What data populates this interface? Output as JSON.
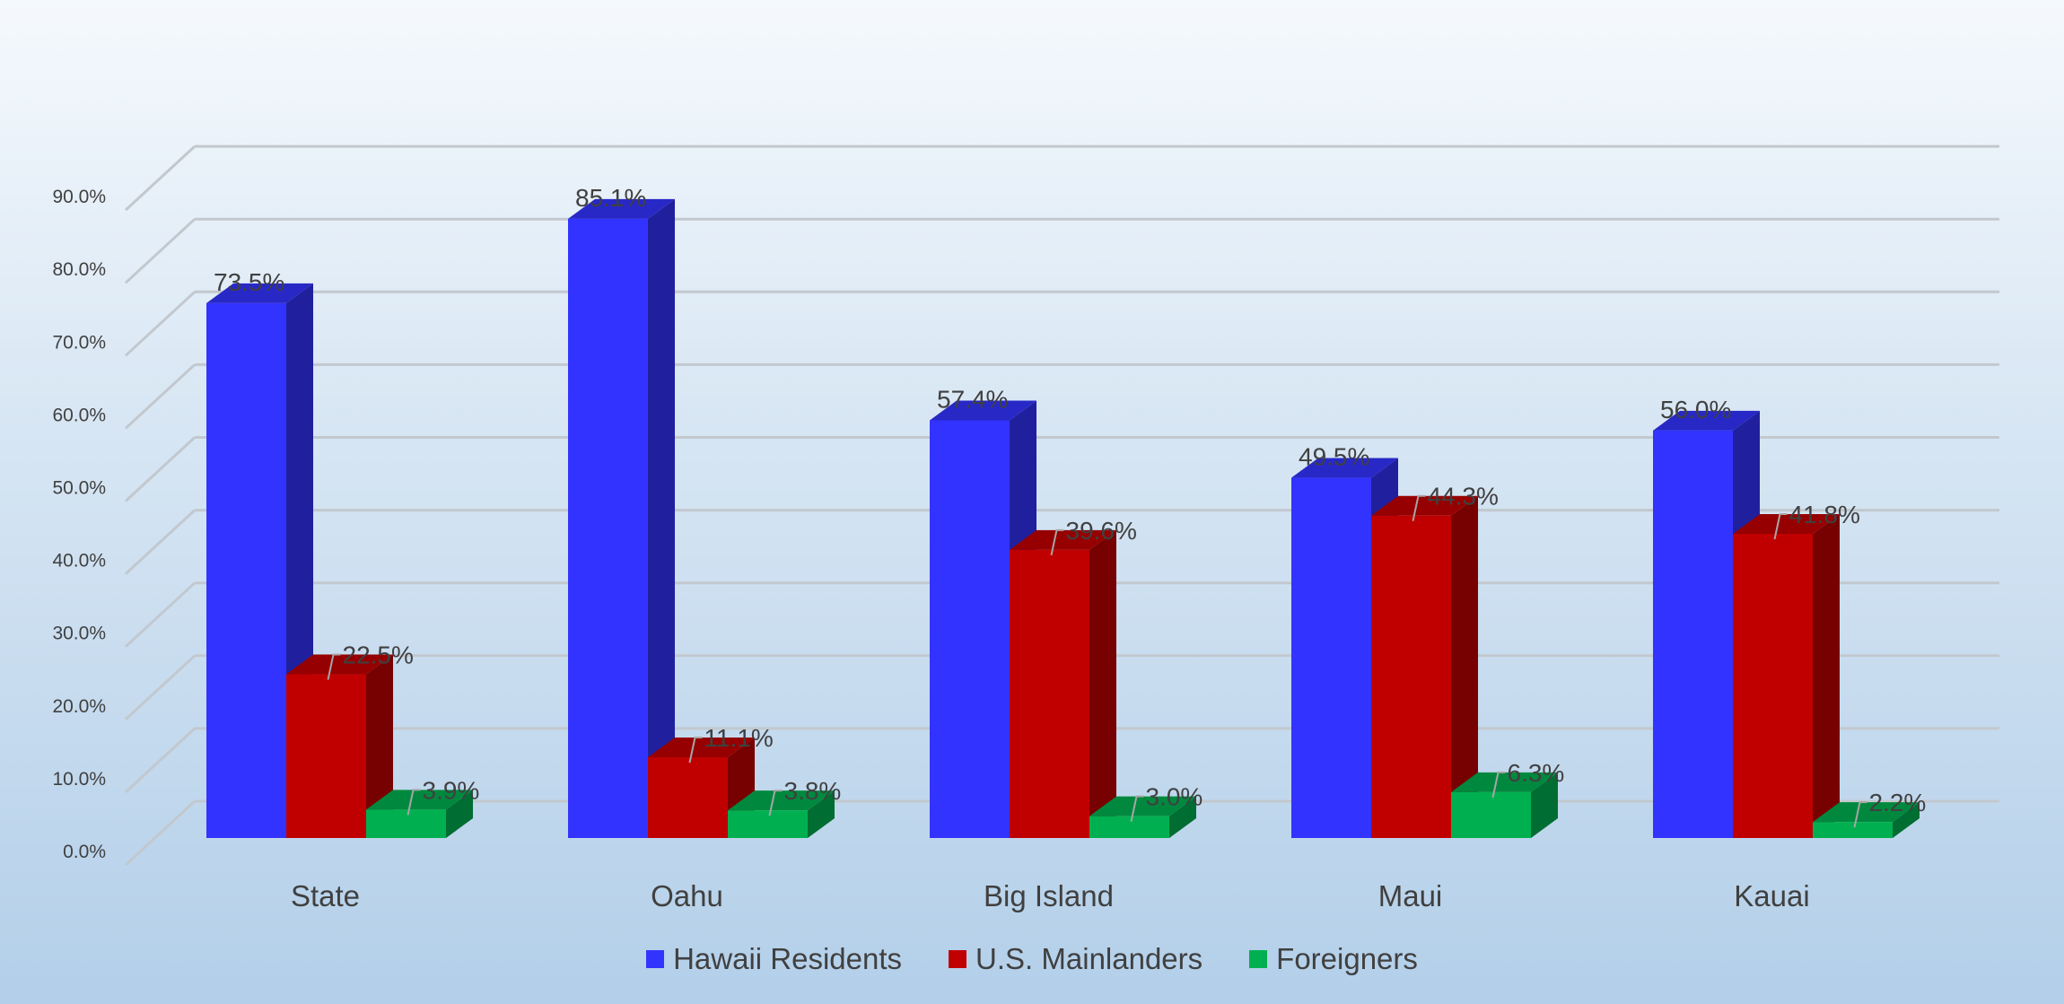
{
  "chart_data": {
    "type": "bar",
    "style": "3d-clustered-column",
    "categories": [
      "State",
      "Oahu",
      "Big Island",
      "Maui",
      "Kauai"
    ],
    "series": [
      {
        "name": "Hawaii Residents",
        "color": "#3333ff",
        "values": [
          73.5,
          85.1,
          57.4,
          49.5,
          56.0
        ],
        "labels": [
          "73.5%",
          "85.1%",
          "57.4%",
          "49.5%",
          "56.0%"
        ]
      },
      {
        "name": "U.S. Mainlanders",
        "color": "#c00000",
        "values": [
          22.5,
          11.1,
          39.6,
          44.3,
          41.8
        ],
        "labels": [
          "22.5%",
          "11.1%",
          "39.6%",
          "44.3%",
          "41.8%"
        ]
      },
      {
        "name": "Foreigners",
        "color": "#00b050",
        "values": [
          3.9,
          3.8,
          3.0,
          6.3,
          2.2
        ],
        "labels": [
          "3.9%",
          "3.8%",
          "3.0%",
          "6.3%",
          "2.2%"
        ]
      }
    ],
    "yticks": [
      "0.0%",
      "10.0%",
      "20.0%",
      "30.0%",
      "40.0%",
      "50.0%",
      "60.0%",
      "70.0%",
      "80.0%",
      "90.0%"
    ],
    "ylim": [
      0,
      90
    ],
    "grid": true,
    "legend_position": "bottom"
  }
}
